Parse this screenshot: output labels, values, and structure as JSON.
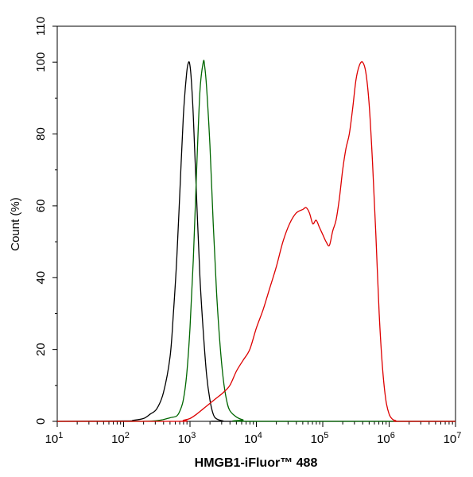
{
  "chart_data": {
    "type": "line",
    "title": "",
    "xlabel": "HMGB1-iFluor™ 488",
    "ylabel": "Count  (%)",
    "xscale": "log",
    "xlim": [
      10,
      10000000
    ],
    "ylim": [
      0,
      110
    ],
    "x_ticks": [
      {
        "base": "10",
        "exp": "1"
      },
      {
        "base": "10",
        "exp": "2"
      },
      {
        "base": "10",
        "exp": "3"
      },
      {
        "base": "10",
        "exp": "4"
      },
      {
        "base": "10",
        "exp": "5"
      },
      {
        "base": "10",
        "exp": "6"
      },
      {
        "base": "10",
        "exp": "7"
      }
    ],
    "y_ticks": [
      "0",
      "20",
      "40",
      "60",
      "80",
      "100",
      "110"
    ],
    "grid": false,
    "legend": "none",
    "series": [
      {
        "color": "#000000",
        "x": [
          10,
          100,
          141,
          200,
          251,
          316,
          398,
          501,
          562,
          631,
          708,
          794,
          891,
          955,
          1000,
          1047,
          1122,
          1259,
          1413,
          1585,
          1778,
          1995,
          2239,
          2512,
          3162,
          3981,
          10000000
        ],
        "y": [
          0,
          0.1,
          0.3,
          0.8,
          2,
          3.5,
          8,
          18,
          30,
          45,
          65,
          85,
          97,
          100,
          99,
          95,
          85,
          62,
          40,
          25,
          13,
          6,
          2,
          0.7,
          0.1,
          0,
          0
        ]
      },
      {
        "color": "#006600",
        "x": [
          10,
          158,
          316,
          398,
          501,
          631,
          708,
          794,
          891,
          1000,
          1122,
          1259,
          1413,
          1585,
          1660,
          1778,
          1995,
          2239,
          2512,
          2818,
          3162,
          3548,
          3981,
          5012,
          6310,
          7943,
          10000000
        ],
        "y": [
          0,
          0,
          0.2,
          0.5,
          1,
          1.5,
          3,
          6,
          13,
          26,
          45,
          70,
          92,
          100,
          99,
          93,
          77,
          55,
          36,
          22,
          12,
          6,
          3,
          1.2,
          0.4,
          0,
          0
        ]
      },
      {
        "color": "#dd0000",
        "x": [
          10,
          631,
          794,
          1000,
          1259,
          1585,
          1995,
          2512,
          3162,
          3981,
          5012,
          6310,
          7943,
          10000,
          12589,
          15849,
          19953,
          25119,
          31623,
          39811,
          50119,
          56234,
          63096,
          70795,
          79433,
          89125,
          100000,
          112202,
          125893,
          141254,
          158489,
          177828,
          199526,
          223872,
          251189,
          281838,
          316228,
          354813,
          398107,
          446684,
          501187,
          562341,
          630957,
          707946,
          794328,
          891251,
          1000000,
          1122018,
          1258925,
          1412538,
          10000000
        ],
        "y": [
          0,
          0,
          0.3,
          0.8,
          2,
          3.5,
          5,
          6.5,
          8,
          10,
          14,
          17,
          20,
          26,
          31,
          37,
          43,
          50,
          55,
          58,
          59,
          59.5,
          58,
          55,
          56,
          54,
          52,
          50,
          49,
          53,
          56,
          62,
          70,
          76,
          80,
          87,
          95,
          99,
          100,
          97,
          88,
          72,
          52,
          30,
          15,
          6,
          2,
          0.6,
          0.2,
          0,
          0
        ]
      }
    ]
  }
}
